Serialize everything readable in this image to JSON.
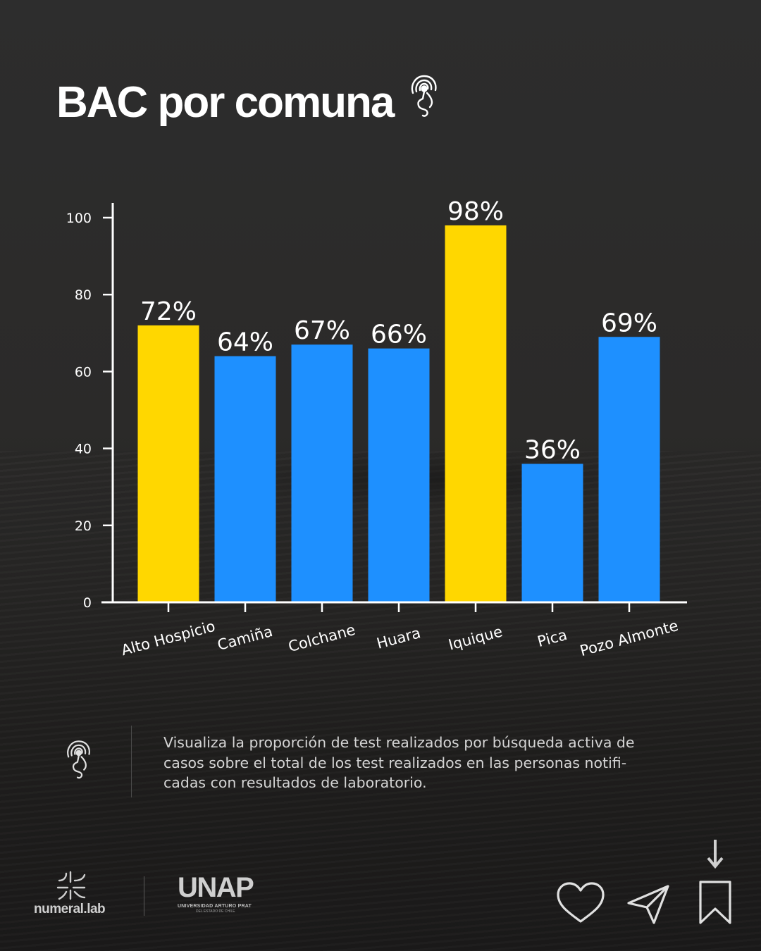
{
  "title": "BAC por comuna",
  "icons": {
    "title_icon": "signal-head-icon",
    "info_icon": "signal-head-icon",
    "brand_icon": "numeral-lab-mark-icon",
    "like": "heart-icon",
    "share": "send-icon",
    "save": "bookmark-icon",
    "scroll": "arrow-down-icon"
  },
  "colors": {
    "highlight": "#FFD700",
    "default": "#1E90FF",
    "axis": "#FFFFFF",
    "background": "#2b2a29"
  },
  "chart_data": {
    "type": "bar",
    "categories": [
      "Alto Hospicio",
      "Camiña",
      "Colchane",
      "Huara",
      "Iquique",
      "Pica",
      "Pozo Almonte"
    ],
    "values": [
      72,
      64,
      67,
      66,
      98,
      36,
      69
    ],
    "data_labels": [
      "72%",
      "64%",
      "67%",
      "66%",
      "98%",
      "36%",
      "69%"
    ],
    "highlighted": [
      true,
      false,
      false,
      false,
      true,
      false,
      false
    ],
    "y_ticks": [
      0,
      20,
      40,
      60,
      80,
      100
    ],
    "ylim": [
      0,
      100
    ],
    "grid": false,
    "xlabel": "",
    "ylabel": ""
  },
  "info": {
    "text": "Visualiza la proporción de test realizados por búsqueda activa de casos sobre el total de los test realizados en las personas notifi­cadas con resultados de laboratorio."
  },
  "footer": {
    "brand_name": "numeral.lab",
    "partner_name": "UNAP",
    "partner_subtitle": "UNIVERSIDAD ARTURO PRAT",
    "partner_subtitle2": "DEL ESTADO DE CHILE"
  }
}
